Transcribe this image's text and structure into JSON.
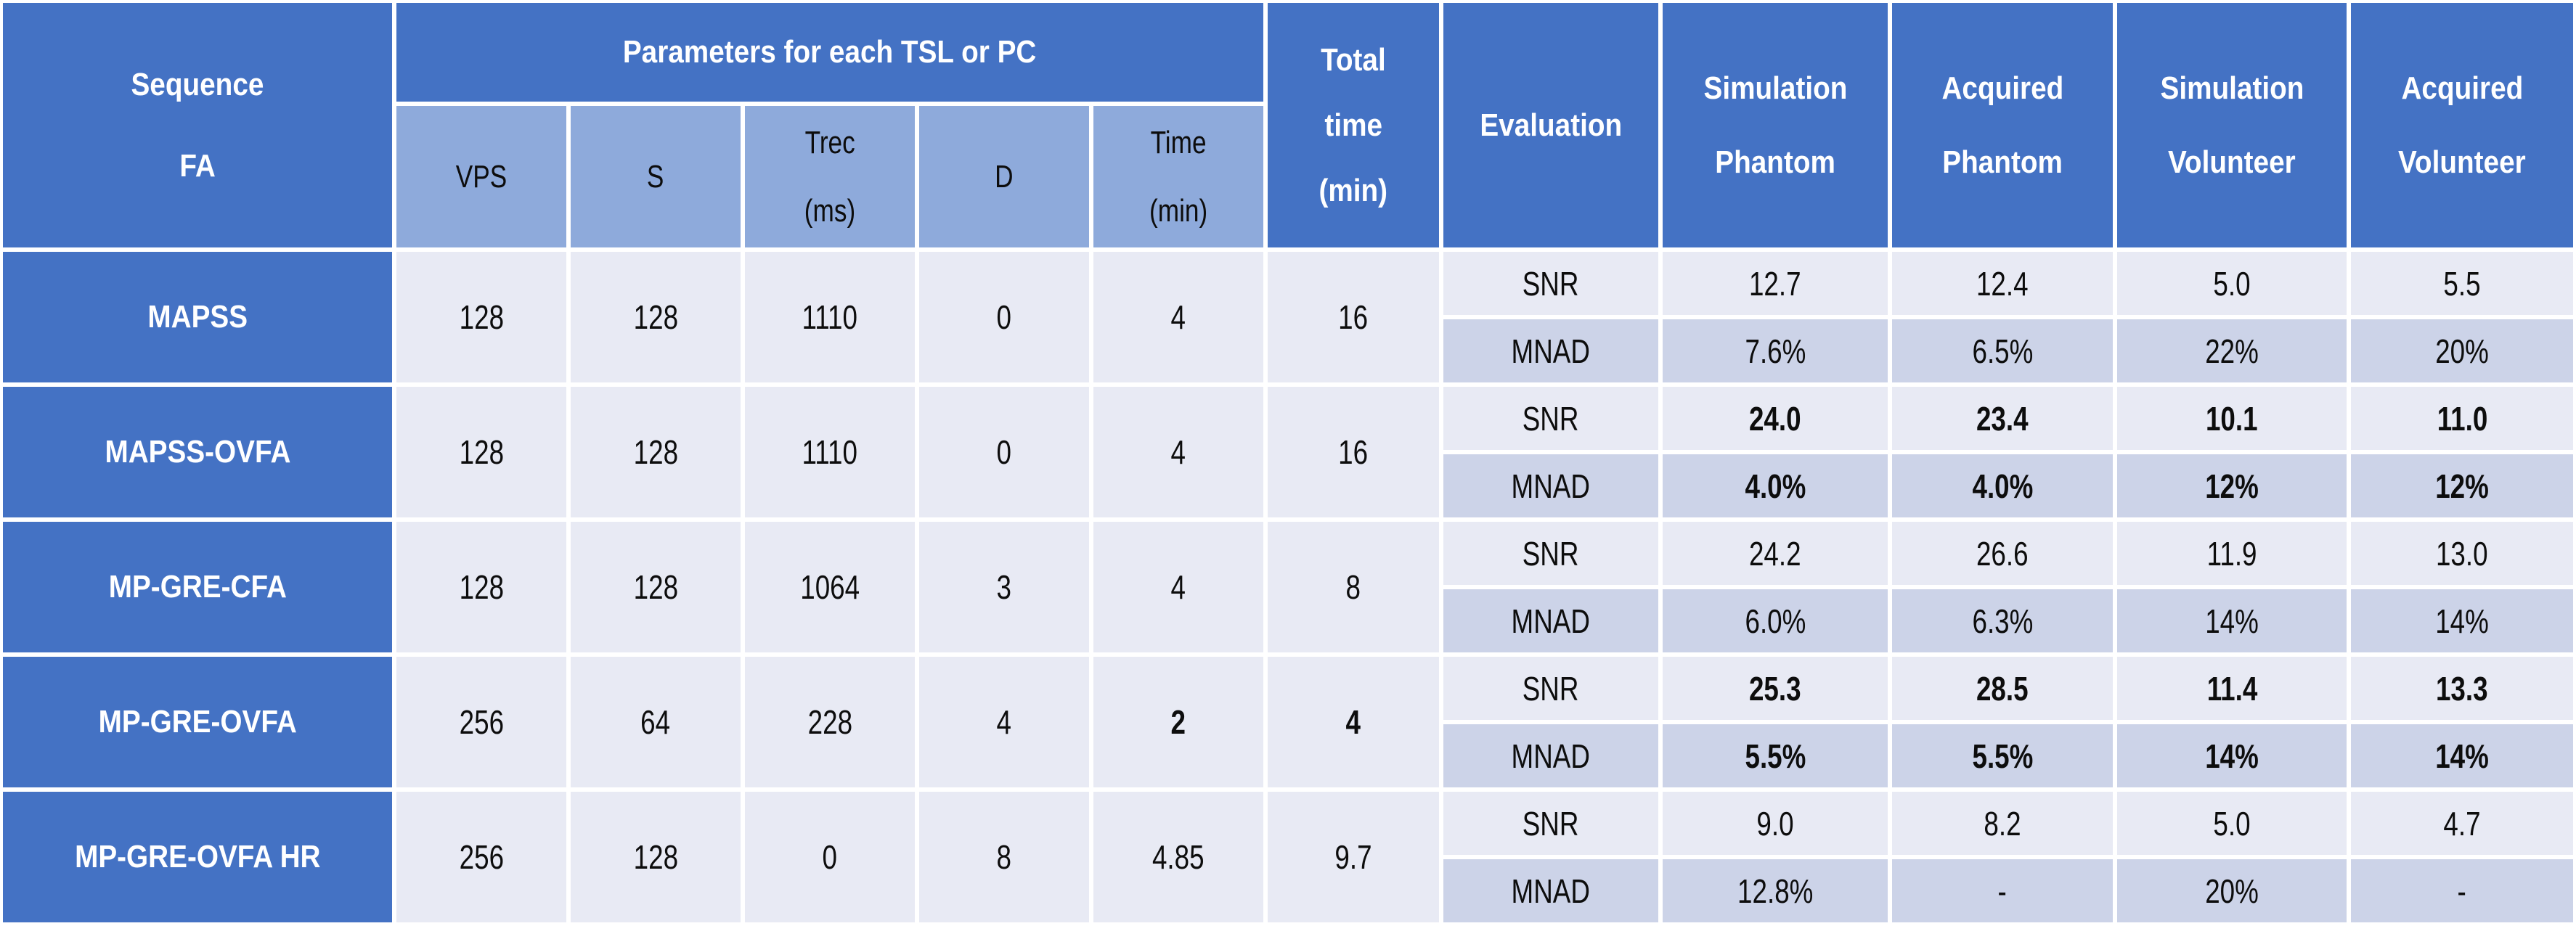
{
  "colors": {
    "header_blue": "#4472C4",
    "subheader_blue": "#8EAADB",
    "row_light": "#E8EAF4",
    "row_band": "#CCD3E8",
    "grid_gap": "#FFFFFF"
  },
  "header": {
    "sequence": {
      "line1": "Sequence",
      "line2": "FA"
    },
    "params_group": "Parameters for each TSL or PC",
    "sub": [
      {
        "l1": "VPS"
      },
      {
        "l1": "S"
      },
      {
        "l1": "Trec",
        "l2": "(ms)"
      },
      {
        "l1": "D"
      },
      {
        "l1": "Time",
        "l2": "(min)"
      }
    ],
    "total_time": {
      "l1": "Total",
      "l2": "time",
      "l3": "(min)"
    },
    "evaluation": "Evaluation",
    "results": [
      {
        "l1": "Simulation",
        "l2": "Phantom"
      },
      {
        "l1": "Acquired",
        "l2": "Phantom"
      },
      {
        "l1": "Simulation",
        "l2": "Volunteer"
      },
      {
        "l1": "Acquired",
        "l2": "Volunteer"
      }
    ]
  },
  "rows": [
    {
      "sequence": "MAPSS",
      "vps": "128",
      "s": "128",
      "trec": "1110",
      "d": "0",
      "time": "4",
      "total": "16",
      "snr_label": "SNR",
      "mnad_label": "MNAD",
      "snr": [
        "12.7",
        "12.4",
        "5.0",
        "5.5"
      ],
      "mnad": [
        "7.6%",
        "6.5%",
        "22%",
        "20%"
      ]
    },
    {
      "sequence": "MAPSS-OVFA",
      "vps": "128",
      "s": "128",
      "trec": "1110",
      "d": "0",
      "time": "4",
      "total": "16",
      "snr_label": "SNR",
      "mnad_label": "MNAD",
      "snr": [
        "24.0",
        "23.4",
        "10.1",
        "11.0"
      ],
      "mnad": [
        "4.0%",
        "4.0%",
        "12%",
        "12%"
      ]
    },
    {
      "sequence": "MP-GRE-CFA",
      "vps": "128",
      "s": "128",
      "trec": "1064",
      "d": "3",
      "time": "4",
      "total": "8",
      "snr_label": "SNR",
      "mnad_label": "MNAD",
      "snr": [
        "24.2",
        "26.6",
        "11.9",
        "13.0"
      ],
      "mnad": [
        "6.0%",
        "6.3%",
        "14%",
        "14%"
      ]
    },
    {
      "sequence": "MP-GRE-OVFA",
      "vps": "256",
      "s": "64",
      "trec": "228",
      "d": "4",
      "time": "2",
      "total": "4",
      "snr_label": "SNR",
      "mnad_label": "MNAD",
      "snr": [
        "25.3",
        "28.5",
        "11.4",
        "13.3"
      ],
      "mnad": [
        "5.5%",
        "5.5%",
        "14%",
        "14%"
      ]
    },
    {
      "sequence": "MP-GRE-OVFA HR",
      "vps": "256",
      "s": "128",
      "trec": "0",
      "d": "8",
      "time": "4.85",
      "total": "9.7",
      "snr_label": "SNR",
      "mnad_label": "MNAD",
      "snr": [
        "9.0",
        "8.2",
        "5.0",
        "4.7"
      ],
      "mnad": [
        "12.8%",
        "-",
        "20%",
        "-"
      ]
    }
  ]
}
